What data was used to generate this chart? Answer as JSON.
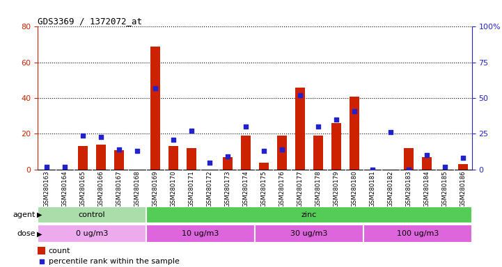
{
  "title": "GDS3369 / 1372072_at",
  "samples": [
    "GSM280163",
    "GSM280164",
    "GSM280165",
    "GSM280166",
    "GSM280167",
    "GSM280168",
    "GSM280169",
    "GSM280170",
    "GSM280171",
    "GSM280172",
    "GSM280173",
    "GSM280174",
    "GSM280175",
    "GSM280176",
    "GSM280177",
    "GSM280178",
    "GSM280179",
    "GSM280180",
    "GSM280181",
    "GSM280182",
    "GSM280183",
    "GSM280184",
    "GSM280185",
    "GSM280186"
  ],
  "counts": [
    0,
    0,
    13,
    14,
    11,
    0,
    69,
    13,
    12,
    0,
    7,
    19,
    4,
    19,
    46,
    19,
    26,
    41,
    0,
    0,
    12,
    7,
    0,
    3
  ],
  "percentiles": [
    2,
    2,
    24,
    23,
    14,
    13,
    57,
    21,
    27,
    5,
    9,
    30,
    13,
    14,
    52,
    30,
    35,
    41,
    0,
    26,
    0,
    10,
    2,
    8
  ],
  "ylim_left": [
    0,
    80
  ],
  "ylim_right": [
    0,
    100
  ],
  "yticks_left": [
    0,
    20,
    40,
    60,
    80
  ],
  "ytick_labels_left": [
    "0",
    "20",
    "40",
    "60",
    "80"
  ],
  "yticks_right": [
    0,
    25,
    50,
    75,
    100
  ],
  "ytick_labels_right": [
    "0",
    "25",
    "50",
    "75",
    "100%"
  ],
  "bar_color": "#cc2200",
  "dot_color": "#2222cc",
  "bg_color": "#ffffff",
  "left_axis_color": "#cc2200",
  "right_axis_color": "#2222cc",
  "agent_groups": [
    {
      "label": "control",
      "start": 0,
      "end": 6,
      "color": "#aaddaa"
    },
    {
      "label": "zinc",
      "start": 6,
      "end": 24,
      "color": "#55cc55"
    }
  ],
  "dose_groups": [
    {
      "label": "0 ug/m3",
      "start": 0,
      "end": 6,
      "color": "#eeaaee"
    },
    {
      "label": "10 ug/m3",
      "start": 6,
      "end": 12,
      "color": "#dd66dd"
    },
    {
      "label": "30 ug/m3",
      "start": 12,
      "end": 18,
      "color": "#dd66dd"
    },
    {
      "label": "100 ug/m3",
      "start": 18,
      "end": 24,
      "color": "#dd66dd"
    }
  ]
}
